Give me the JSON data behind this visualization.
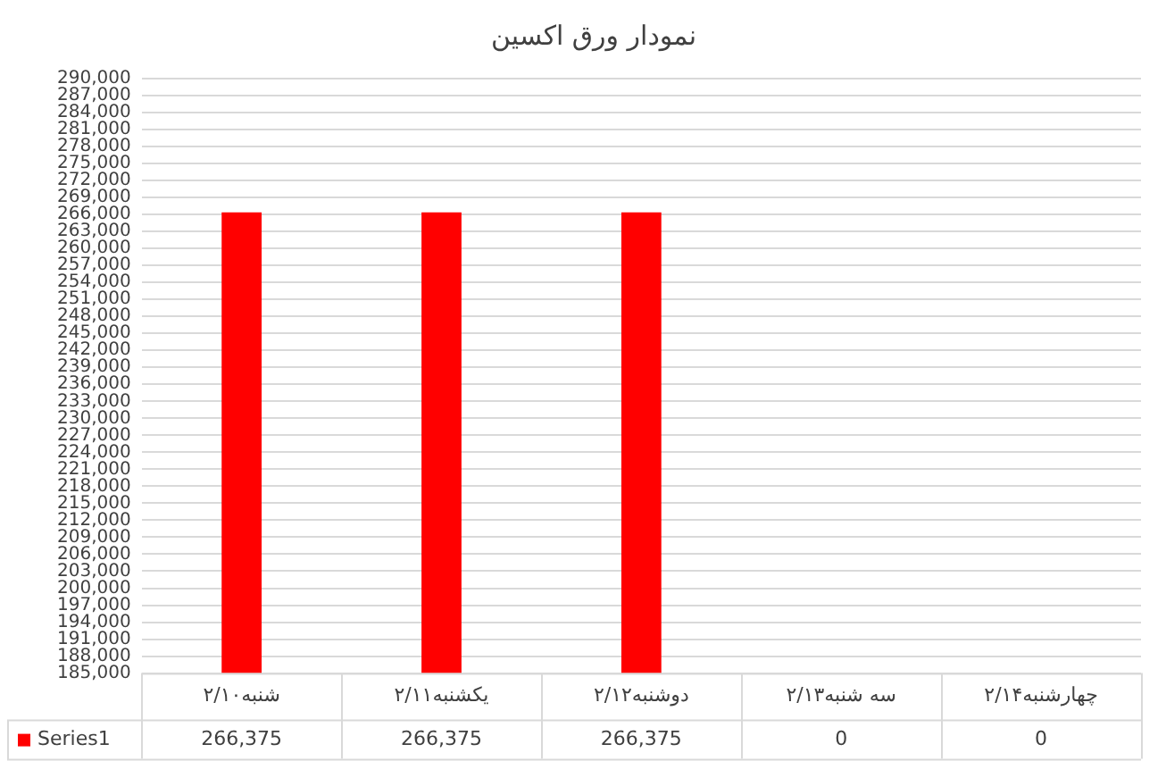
{
  "chart_data": {
    "type": "bar",
    "title": "نمودار ورق اکسین",
    "categories": [
      "شنبه۲/۱۰",
      "یکشنبه۲/۱۱",
      "دوشنبه۲/۱۲",
      "سه شنبه۲/۱۳",
      "چهارشنبه۲/۱۴"
    ],
    "series": [
      {
        "name": "Series1",
        "color": "#ff0000",
        "values": [
          266375,
          266375,
          266375,
          null,
          null
        ],
        "value_labels": [
          "266,375",
          "266,375",
          "266,375",
          "0",
          "0"
        ]
      }
    ],
    "ylim": [
      185000,
      290000
    ],
    "yticks": [
      {
        "value": 185000,
        "label": "185,000"
      },
      {
        "value": 188000,
        "label": "188,000"
      },
      {
        "value": 191000,
        "label": "191,000"
      },
      {
        "value": 194000,
        "label": "194,000"
      },
      {
        "value": 197000,
        "label": "197,000"
      },
      {
        "value": 200000,
        "label": "200,000"
      },
      {
        "value": 203000,
        "label": "203,000"
      },
      {
        "value": 206000,
        "label": "206,000"
      },
      {
        "value": 209000,
        "label": "209,000"
      },
      {
        "value": 212000,
        "label": "212,000"
      },
      {
        "value": 215000,
        "label": "215,000"
      },
      {
        "value": 218000,
        "label": "218,000"
      },
      {
        "value": 221000,
        "label": "221,000"
      },
      {
        "value": 224000,
        "label": "224,000"
      },
      {
        "value": 227000,
        "label": "227,000"
      },
      {
        "value": 230000,
        "label": "230,000"
      },
      {
        "value": 233000,
        "label": "233,000"
      },
      {
        "value": 236000,
        "label": "236,000"
      },
      {
        "value": 239000,
        "label": "239,000"
      },
      {
        "value": 242000,
        "label": "242,000"
      },
      {
        "value": 245000,
        "label": "245,000"
      },
      {
        "value": 248000,
        "label": "248,000"
      },
      {
        "value": 251000,
        "label": "251,000"
      },
      {
        "value": 254000,
        "label": "254,000"
      },
      {
        "value": 257000,
        "label": "257,000"
      },
      {
        "value": 260000,
        "label": "260,000"
      },
      {
        "value": 263000,
        "label": "263,000"
      },
      {
        "value": 266000,
        "label": "266,000"
      },
      {
        "value": 269000,
        "label": "269,000"
      },
      {
        "value": 272000,
        "label": "272,000"
      },
      {
        "value": 275000,
        "label": "275,000"
      },
      {
        "value": 278000,
        "label": "278,000"
      },
      {
        "value": 281000,
        "label": "281,000"
      },
      {
        "value": 284000,
        "label": "284,000"
      },
      {
        "value": 287000,
        "label": "287,000"
      },
      {
        "value": 290000,
        "label": "290,000"
      }
    ],
    "grid": "y"
  }
}
